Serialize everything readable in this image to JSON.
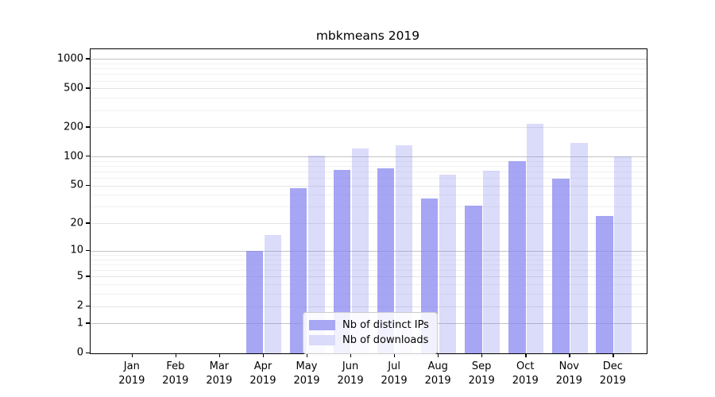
{
  "title": "mbkmeans 2019",
  "chart_data": {
    "type": "bar",
    "title": "mbkmeans 2019",
    "categories": [
      "Jan",
      "Feb",
      "Mar",
      "Apr",
      "May",
      "Jun",
      "Jul",
      "Aug",
      "Sep",
      "Oct",
      "Nov",
      "Dec"
    ],
    "year": "2019",
    "series": [
      {
        "name": "Nb of distinct IPs",
        "values": [
          0,
          0,
          0,
          10,
          47,
          73,
          76,
          37,
          31,
          90,
          59,
          24
        ]
      },
      {
        "name": "Nb of downloads",
        "values": [
          0,
          0,
          0,
          15,
          103,
          120,
          130,
          65,
          71,
          218,
          138,
          100
        ]
      }
    ],
    "yticks": [
      0,
      1,
      2,
      5,
      10,
      20,
      50,
      100,
      200,
      500,
      1000
    ],
    "xlabel": "",
    "ylabel": "",
    "yscale": "log10(1+y)",
    "ylim": [
      0,
      1260
    ],
    "grid": true,
    "legend_position": "lower center",
    "colors": {
      "bar_ips": "rgba(135,135,240,0.74)",
      "bar_downloads": "rgba(135,135,240,0.30)",
      "legend_ips": "#a7a7f3",
      "legend_downloads": "#dadafa",
      "grid_major": "#c2c2c2",
      "grid_mid": "#e4e4e4",
      "grid_minor": "#f1f1f1",
      "spine": "#000000",
      "text": "#000000",
      "legend_border": "#cccccc"
    }
  }
}
